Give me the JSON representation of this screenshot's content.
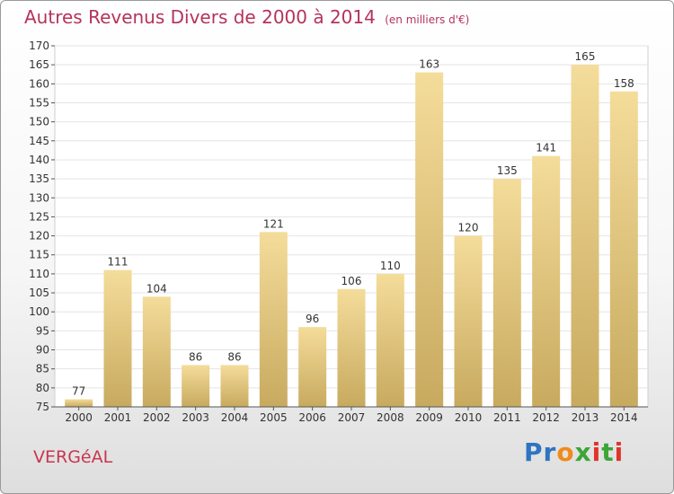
{
  "header": {
    "title": "Autres Revenus Divers de 2000 à 2014",
    "subtitle": "(en milliers d'€)"
  },
  "footer": {
    "commune": "VERGéAL",
    "logo": {
      "letters": [
        "P",
        "r",
        "o",
        "x",
        "i",
        "t",
        "i"
      ],
      "colors": [
        "#2f74c0",
        "#2f74c0",
        "#f08a1c",
        "#3aa636",
        "#e0342a",
        "#3aa636",
        "#e0342a"
      ]
    }
  },
  "colors": {
    "bar_light": "#f4dc9a",
    "bar_dark": "#c8aa5f",
    "title": "#b5335a",
    "commune": "#c8364f"
  },
  "chart_data": {
    "type": "bar",
    "categories": [
      "2000",
      "2001",
      "2002",
      "2003",
      "2004",
      "2005",
      "2006",
      "2007",
      "2008",
      "2009",
      "2010",
      "2011",
      "2012",
      "2013",
      "2014"
    ],
    "values": [
      77,
      111,
      104,
      86,
      86,
      121,
      96,
      106,
      110,
      163,
      120,
      135,
      141,
      165,
      158
    ],
    "value_labels": [
      "77",
      "111",
      "104",
      "86",
      "86",
      "121",
      "96",
      "106",
      "110",
      "163",
      "120",
      "135",
      "141",
      "165",
      "158"
    ],
    "title": "Autres Revenus Divers de 2000 à 2014",
    "xlabel": "",
    "ylabel": "",
    "ylim": [
      75,
      170
    ],
    "yticks": [
      "75",
      "80",
      "85",
      "90",
      "95",
      "100",
      "105",
      "110",
      "115",
      "120",
      "125",
      "130",
      "135",
      "140",
      "145",
      "150",
      "155",
      "160",
      "165",
      "170"
    ],
    "grid": true,
    "legend": "none"
  }
}
